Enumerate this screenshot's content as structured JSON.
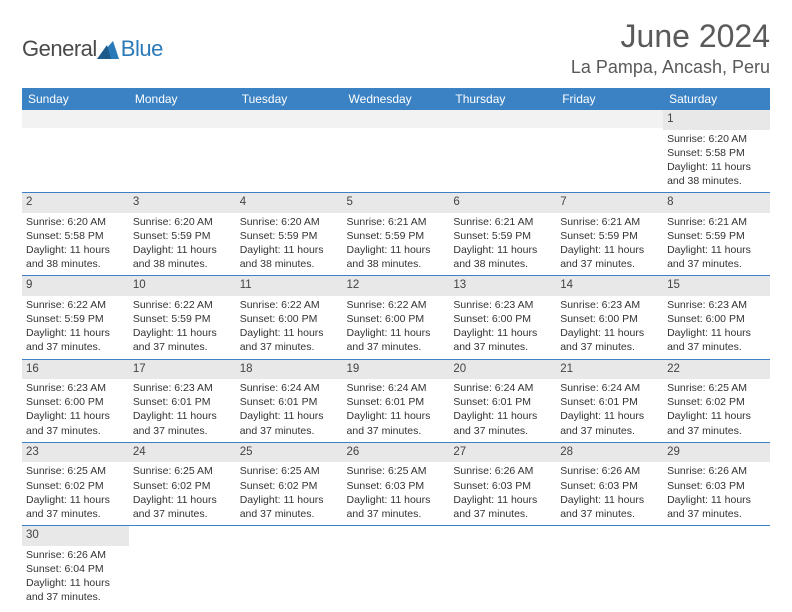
{
  "logo": {
    "textMain": "General",
    "textBlue": "Blue"
  },
  "title": "June 2024",
  "location": "La Pampa, Ancash, Peru",
  "colors": {
    "headerBg": "#3b82c4",
    "headerText": "#ffffff",
    "dayBarBg": "#e8e8e8",
    "borderColor": "#3b82c4",
    "bodyText": "#333333",
    "titleText": "#5a5a5a",
    "logoBlue": "#2a7ab8"
  },
  "fonts": {
    "title_size": 32,
    "location_size": 18,
    "header_size": 12,
    "cell_size": 10.5,
    "daynum_size": 11.5
  },
  "dayHeaders": [
    "Sunday",
    "Monday",
    "Tuesday",
    "Wednesday",
    "Thursday",
    "Friday",
    "Saturday"
  ],
  "weeks": [
    [
      null,
      null,
      null,
      null,
      null,
      null,
      {
        "n": "1",
        "sr": "Sunrise: 6:20 AM",
        "ss": "Sunset: 5:58 PM",
        "d1": "Daylight: 11 hours",
        "d2": "and 38 minutes."
      }
    ],
    [
      {
        "n": "2",
        "sr": "Sunrise: 6:20 AM",
        "ss": "Sunset: 5:58 PM",
        "d1": "Daylight: 11 hours",
        "d2": "and 38 minutes."
      },
      {
        "n": "3",
        "sr": "Sunrise: 6:20 AM",
        "ss": "Sunset: 5:59 PM",
        "d1": "Daylight: 11 hours",
        "d2": "and 38 minutes."
      },
      {
        "n": "4",
        "sr": "Sunrise: 6:20 AM",
        "ss": "Sunset: 5:59 PM",
        "d1": "Daylight: 11 hours",
        "d2": "and 38 minutes."
      },
      {
        "n": "5",
        "sr": "Sunrise: 6:21 AM",
        "ss": "Sunset: 5:59 PM",
        "d1": "Daylight: 11 hours",
        "d2": "and 38 minutes."
      },
      {
        "n": "6",
        "sr": "Sunrise: 6:21 AM",
        "ss": "Sunset: 5:59 PM",
        "d1": "Daylight: 11 hours",
        "d2": "and 38 minutes."
      },
      {
        "n": "7",
        "sr": "Sunrise: 6:21 AM",
        "ss": "Sunset: 5:59 PM",
        "d1": "Daylight: 11 hours",
        "d2": "and 37 minutes."
      },
      {
        "n": "8",
        "sr": "Sunrise: 6:21 AM",
        "ss": "Sunset: 5:59 PM",
        "d1": "Daylight: 11 hours",
        "d2": "and 37 minutes."
      }
    ],
    [
      {
        "n": "9",
        "sr": "Sunrise: 6:22 AM",
        "ss": "Sunset: 5:59 PM",
        "d1": "Daylight: 11 hours",
        "d2": "and 37 minutes."
      },
      {
        "n": "10",
        "sr": "Sunrise: 6:22 AM",
        "ss": "Sunset: 5:59 PM",
        "d1": "Daylight: 11 hours",
        "d2": "and 37 minutes."
      },
      {
        "n": "11",
        "sr": "Sunrise: 6:22 AM",
        "ss": "Sunset: 6:00 PM",
        "d1": "Daylight: 11 hours",
        "d2": "and 37 minutes."
      },
      {
        "n": "12",
        "sr": "Sunrise: 6:22 AM",
        "ss": "Sunset: 6:00 PM",
        "d1": "Daylight: 11 hours",
        "d2": "and 37 minutes."
      },
      {
        "n": "13",
        "sr": "Sunrise: 6:23 AM",
        "ss": "Sunset: 6:00 PM",
        "d1": "Daylight: 11 hours",
        "d2": "and 37 minutes."
      },
      {
        "n": "14",
        "sr": "Sunrise: 6:23 AM",
        "ss": "Sunset: 6:00 PM",
        "d1": "Daylight: 11 hours",
        "d2": "and 37 minutes."
      },
      {
        "n": "15",
        "sr": "Sunrise: 6:23 AM",
        "ss": "Sunset: 6:00 PM",
        "d1": "Daylight: 11 hours",
        "d2": "and 37 minutes."
      }
    ],
    [
      {
        "n": "16",
        "sr": "Sunrise: 6:23 AM",
        "ss": "Sunset: 6:00 PM",
        "d1": "Daylight: 11 hours",
        "d2": "and 37 minutes."
      },
      {
        "n": "17",
        "sr": "Sunrise: 6:23 AM",
        "ss": "Sunset: 6:01 PM",
        "d1": "Daylight: 11 hours",
        "d2": "and 37 minutes."
      },
      {
        "n": "18",
        "sr": "Sunrise: 6:24 AM",
        "ss": "Sunset: 6:01 PM",
        "d1": "Daylight: 11 hours",
        "d2": "and 37 minutes."
      },
      {
        "n": "19",
        "sr": "Sunrise: 6:24 AM",
        "ss": "Sunset: 6:01 PM",
        "d1": "Daylight: 11 hours",
        "d2": "and 37 minutes."
      },
      {
        "n": "20",
        "sr": "Sunrise: 6:24 AM",
        "ss": "Sunset: 6:01 PM",
        "d1": "Daylight: 11 hours",
        "d2": "and 37 minutes."
      },
      {
        "n": "21",
        "sr": "Sunrise: 6:24 AM",
        "ss": "Sunset: 6:01 PM",
        "d1": "Daylight: 11 hours",
        "d2": "and 37 minutes."
      },
      {
        "n": "22",
        "sr": "Sunrise: 6:25 AM",
        "ss": "Sunset: 6:02 PM",
        "d1": "Daylight: 11 hours",
        "d2": "and 37 minutes."
      }
    ],
    [
      {
        "n": "23",
        "sr": "Sunrise: 6:25 AM",
        "ss": "Sunset: 6:02 PM",
        "d1": "Daylight: 11 hours",
        "d2": "and 37 minutes."
      },
      {
        "n": "24",
        "sr": "Sunrise: 6:25 AM",
        "ss": "Sunset: 6:02 PM",
        "d1": "Daylight: 11 hours",
        "d2": "and 37 minutes."
      },
      {
        "n": "25",
        "sr": "Sunrise: 6:25 AM",
        "ss": "Sunset: 6:02 PM",
        "d1": "Daylight: 11 hours",
        "d2": "and 37 minutes."
      },
      {
        "n": "26",
        "sr": "Sunrise: 6:25 AM",
        "ss": "Sunset: 6:03 PM",
        "d1": "Daylight: 11 hours",
        "d2": "and 37 minutes."
      },
      {
        "n": "27",
        "sr": "Sunrise: 6:26 AM",
        "ss": "Sunset: 6:03 PM",
        "d1": "Daylight: 11 hours",
        "d2": "and 37 minutes."
      },
      {
        "n": "28",
        "sr": "Sunrise: 6:26 AM",
        "ss": "Sunset: 6:03 PM",
        "d1": "Daylight: 11 hours",
        "d2": "and 37 minutes."
      },
      {
        "n": "29",
        "sr": "Sunrise: 6:26 AM",
        "ss": "Sunset: 6:03 PM",
        "d1": "Daylight: 11 hours",
        "d2": "and 37 minutes."
      }
    ],
    [
      {
        "n": "30",
        "sr": "Sunrise: 6:26 AM",
        "ss": "Sunset: 6:04 PM",
        "d1": "Daylight: 11 hours",
        "d2": "and 37 minutes."
      },
      null,
      null,
      null,
      null,
      null,
      null
    ]
  ]
}
